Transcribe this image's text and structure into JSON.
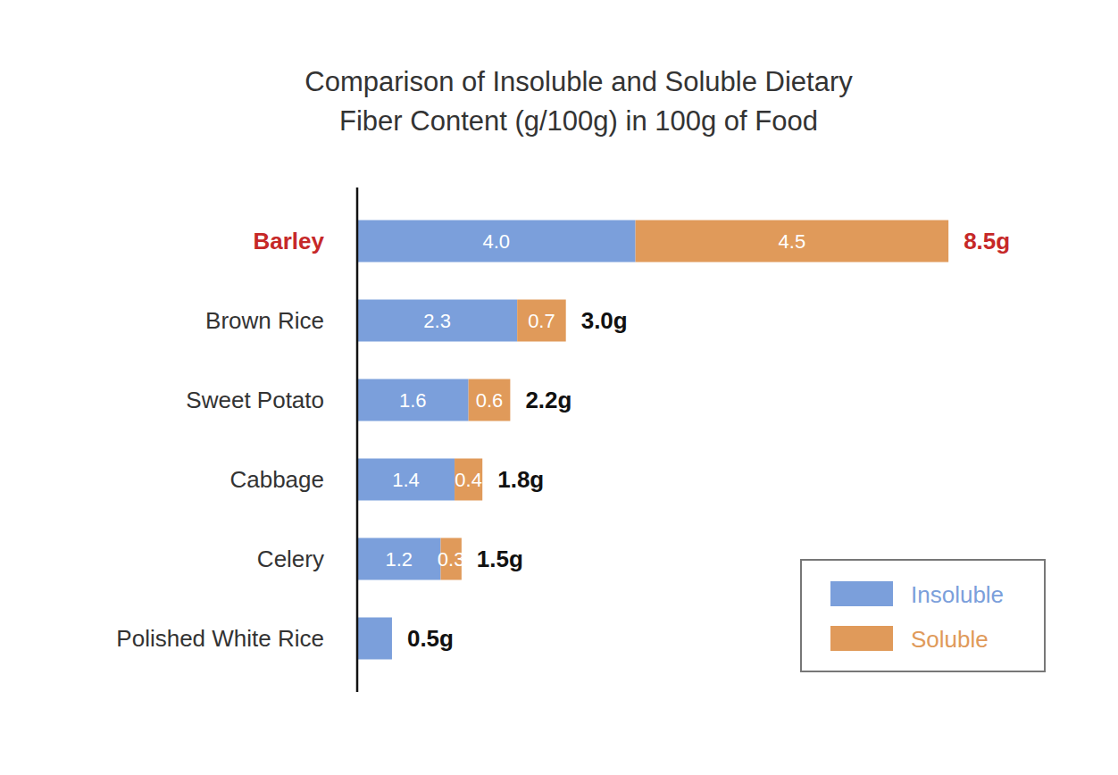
{
  "chart_data": {
    "type": "bar",
    "title": "Comparison of Insoluble and Soluble Dietary\nFiber Content (g/100g) in 100g of Food",
    "orientation": "horizontal",
    "stacked": true,
    "data_labels": true,
    "tick_labels": "y",
    "legend": "lower right",
    "categories": [
      "Barley",
      "Brown Rice",
      "Sweet Potato",
      "Cabbage",
      "Celery",
      "Polished White Rice"
    ],
    "series": [
      {
        "name": "Insoluble",
        "color": "#7b9fdb",
        "values": [
          4.0,
          2.3,
          1.6,
          1.4,
          1.2,
          0.5
        ],
        "value_labels": [
          "4.0",
          "2.3",
          "1.6",
          "1.4",
          "1.2",
          null
        ]
      },
      {
        "name": "Soluble",
        "color": "#e09a5a",
        "values": [
          4.5,
          0.7,
          0.6,
          0.4,
          0.3,
          null
        ],
        "value_labels": [
          "4.5",
          "0.7",
          "0.6",
          "0.4",
          "0.3",
          null
        ]
      }
    ],
    "totals": [
      8.5,
      3.0,
      2.2,
      1.8,
      1.5,
      0.5
    ],
    "total_labels": [
      "8.5g",
      "3.0g",
      "2.2g",
      "1.8g",
      "1.5g",
      "0.5g"
    ],
    "xlim": [
      0,
      10
    ]
  }
}
